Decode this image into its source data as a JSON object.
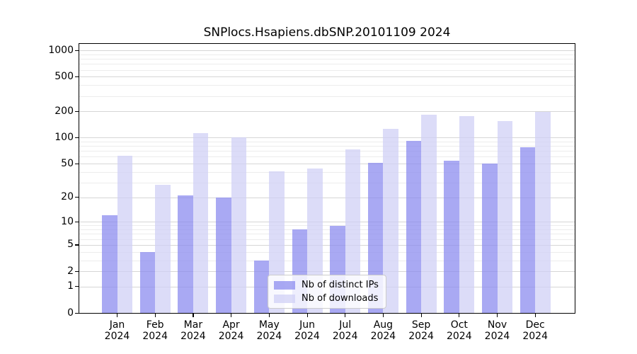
{
  "chart_data": {
    "type": "bar",
    "title": "SNPlocs.Hsapiens.dbSNP.20101109 2024",
    "year_label": "2024",
    "categories": [
      "Jan",
      "Feb",
      "Mar",
      "Apr",
      "May",
      "Jun",
      "Jul",
      "Aug",
      "Sep",
      "Oct",
      "Nov",
      "Dec"
    ],
    "series": [
      {
        "name": "Nb of distinct IPs",
        "color": "rgba(136,136,238,0.72)",
        "values": [
          12,
          4,
          21,
          20,
          3,
          8,
          9,
          51,
          92,
          54,
          50,
          78
        ]
      },
      {
        "name": "Nb of downloads",
        "color": "rgba(206,206,245,0.72)",
        "values": [
          62,
          28,
          112,
          100,
          41,
          44,
          73,
          127,
          185,
          178,
          156,
          198
        ]
      }
    ],
    "yscale": "log1p",
    "yticks": [
      0,
      1,
      2,
      5,
      10,
      20,
      50,
      100,
      200,
      500,
      1000
    ],
    "minor_yticks": [
      3,
      4,
      6,
      7,
      8,
      9,
      30,
      40,
      60,
      70,
      80,
      90,
      300,
      400,
      600,
      700,
      800,
      900
    ],
    "ylim": [
      0,
      1190
    ],
    "xlabel": "",
    "ylabel": "",
    "grid": "horizontal",
    "legend_position": "inside-bottom-center",
    "colors": {
      "major_grid": "#d6d6d6",
      "minor_grid": "#ececec",
      "axis": "#000000",
      "background": "#ffffff"
    }
  }
}
